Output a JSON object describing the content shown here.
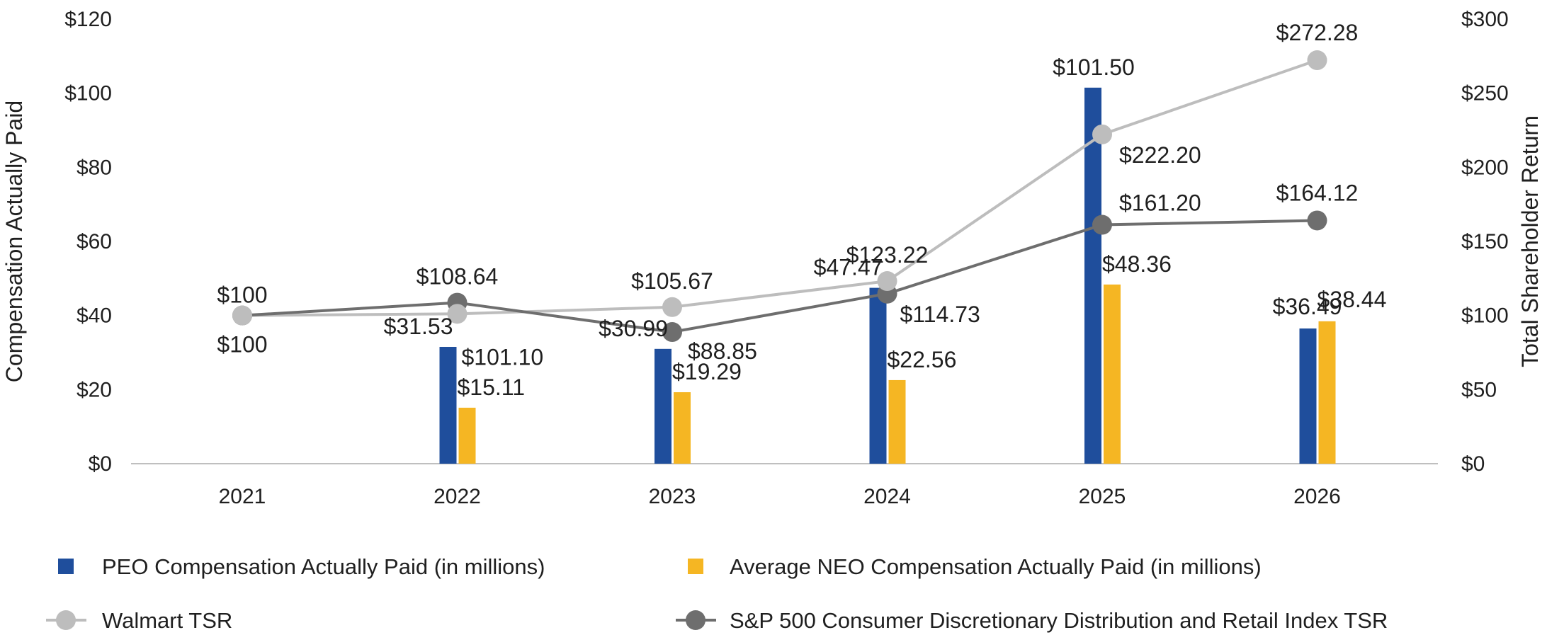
{
  "chart_data": {
    "type": "bar",
    "categories": [
      "2021",
      "2022",
      "2023",
      "2024",
      "2025",
      "2026"
    ],
    "left_axis": {
      "label": "Compensation Actually Paid",
      "range": [
        0,
        120
      ],
      "ticks": [
        "$0",
        "$20",
        "$40",
        "$60",
        "$80",
        "$100",
        "$120"
      ]
    },
    "right_axis": {
      "label": "Total Shareholder Return",
      "range": [
        0,
        300
      ],
      "ticks": [
        "$0",
        "$50",
        "$100",
        "$150",
        "$200",
        "$250",
        "$300"
      ]
    },
    "bar_series": [
      {
        "name": "PEO Compensation Actually Paid (in millions)",
        "color": "#1F4E9C",
        "values": [
          null,
          31.53,
          30.99,
          47.47,
          101.5,
          36.49
        ],
        "labels": [
          "",
          "$31.53",
          "$30.99",
          "$47.47",
          "$101.50",
          "$36.49"
        ]
      },
      {
        "name": "Average NEO Compensation Actually Paid (in millions)",
        "color": "#F5B623",
        "values": [
          null,
          15.11,
          19.29,
          22.56,
          48.36,
          38.44
        ],
        "labels": [
          "",
          "$15.11",
          "$19.29",
          "$22.56",
          "$48.36",
          "$38.44"
        ]
      }
    ],
    "line_series": [
      {
        "name": "Walmart TSR",
        "color": "#BDBDBD",
        "values": [
          100,
          101.1,
          105.67,
          123.22,
          222.2,
          272.28
        ],
        "labels": [
          "$100",
          "$101.10",
          "$105.67",
          "$123.22",
          "$222.20",
          "$272.28"
        ]
      },
      {
        "name": "S&P 500 Consumer Discretionary Distribution and Retail Index TSR",
        "color": "#6E6E6E",
        "values": [
          100,
          108.64,
          88.85,
          114.73,
          161.2,
          164.12
        ],
        "labels": [
          "$100",
          "$108.64",
          "$88.85",
          "$114.73",
          "$161.20",
          "$164.12"
        ]
      }
    ]
  }
}
